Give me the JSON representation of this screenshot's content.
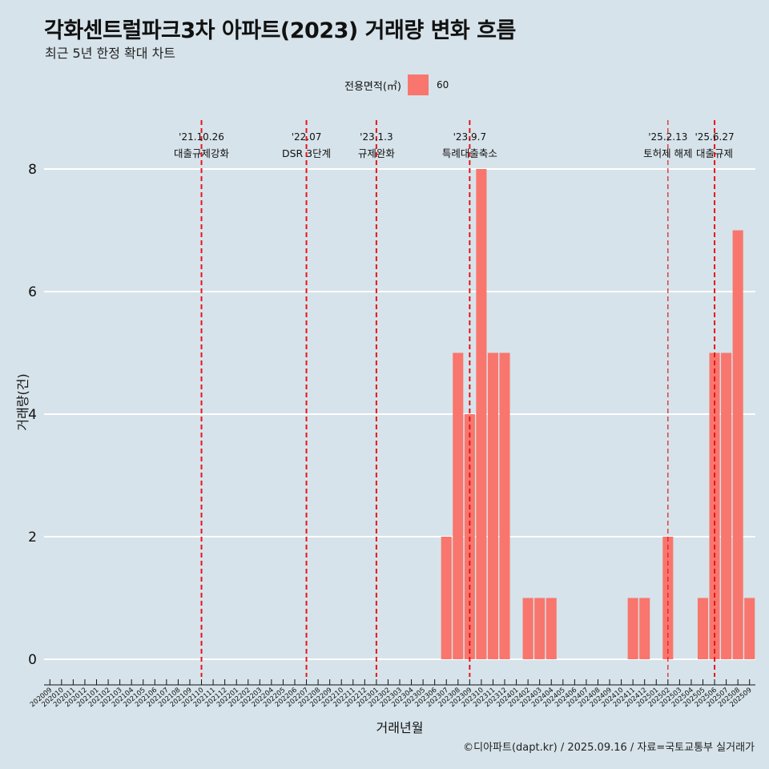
{
  "header": {
    "title": "각화센트럴파크3차 아파트(2023) 거래량 변화 흐름",
    "subtitle": "최근 5년 한정 확대 차트"
  },
  "legend": {
    "title": "전용면적(㎡)",
    "items": [
      {
        "label": "60",
        "color": "#f8766d"
      }
    ]
  },
  "caption": "©디아파트(dapt.kr) / 2025.09.16 / 자료=국토교통부 실거래가",
  "colors": {
    "background": "#d6e3ea",
    "bar": "#f8766d",
    "event_line": "#e8141a",
    "grid": "#ffffff"
  },
  "chart_data": {
    "type": "bar",
    "title": "각화센트럴파크3차 아파트(2023) 거래량 변화 흐름",
    "subtitle": "최근 5년 한정 확대 차트",
    "xlabel": "거래년월",
    "ylabel": "거래량(건)",
    "ylim": [
      0,
      8
    ],
    "yticks": [
      0,
      2,
      4,
      6,
      8
    ],
    "grid": true,
    "legend_position": "top",
    "categories": [
      "202009",
      "202010",
      "202011",
      "202012",
      "202101",
      "202102",
      "202103",
      "202104",
      "202105",
      "202106",
      "202107",
      "202108",
      "202109",
      "202110",
      "202111",
      "202112",
      "202201",
      "202202",
      "202203",
      "202204",
      "202205",
      "202206",
      "202207",
      "202208",
      "202209",
      "202210",
      "202211",
      "202212",
      "202301",
      "202302",
      "202303",
      "202304",
      "202305",
      "202306",
      "202307",
      "202308",
      "202309",
      "202310",
      "202311",
      "202312",
      "202401",
      "202402",
      "202403",
      "202404",
      "202405",
      "202406",
      "202407",
      "202408",
      "202409",
      "202410",
      "202411",
      "202412",
      "202501",
      "202502",
      "202503",
      "202504",
      "202505",
      "202506",
      "202507",
      "202508",
      "202509"
    ],
    "series": [
      {
        "name": "60",
        "values": [
          0,
          0,
          0,
          0,
          0,
          0,
          0,
          0,
          0,
          0,
          0,
          0,
          0,
          0,
          0,
          0,
          0,
          0,
          0,
          0,
          0,
          0,
          0,
          0,
          0,
          0,
          0,
          0,
          0,
          0,
          0,
          0,
          0,
          0,
          2,
          5,
          4,
          8,
          5,
          5,
          0,
          1,
          1,
          1,
          0,
          0,
          0,
          0,
          0,
          0,
          1,
          1,
          0,
          2,
          0,
          0,
          1,
          5,
          5,
          7,
          1
        ]
      }
    ],
    "events": [
      {
        "date": "'21.10.26",
        "label": "대출규제강화",
        "category": "202110",
        "style": "thick"
      },
      {
        "date": "'22.07",
        "label": "DSR 3단계",
        "category": "202207",
        "style": "thick"
      },
      {
        "date": "'23.1.3",
        "label": "규제완화",
        "category": "202301",
        "style": "thick"
      },
      {
        "date": "'23.9.7",
        "label": "특례대출축소",
        "category": "202309",
        "style": "thick"
      },
      {
        "date": "'25.2.13",
        "label": "토허제 해제",
        "category": "202502",
        "style": "thin"
      },
      {
        "date": "'25.6.27",
        "label": "대출규제",
        "category": "202506",
        "style": "thick"
      }
    ]
  }
}
